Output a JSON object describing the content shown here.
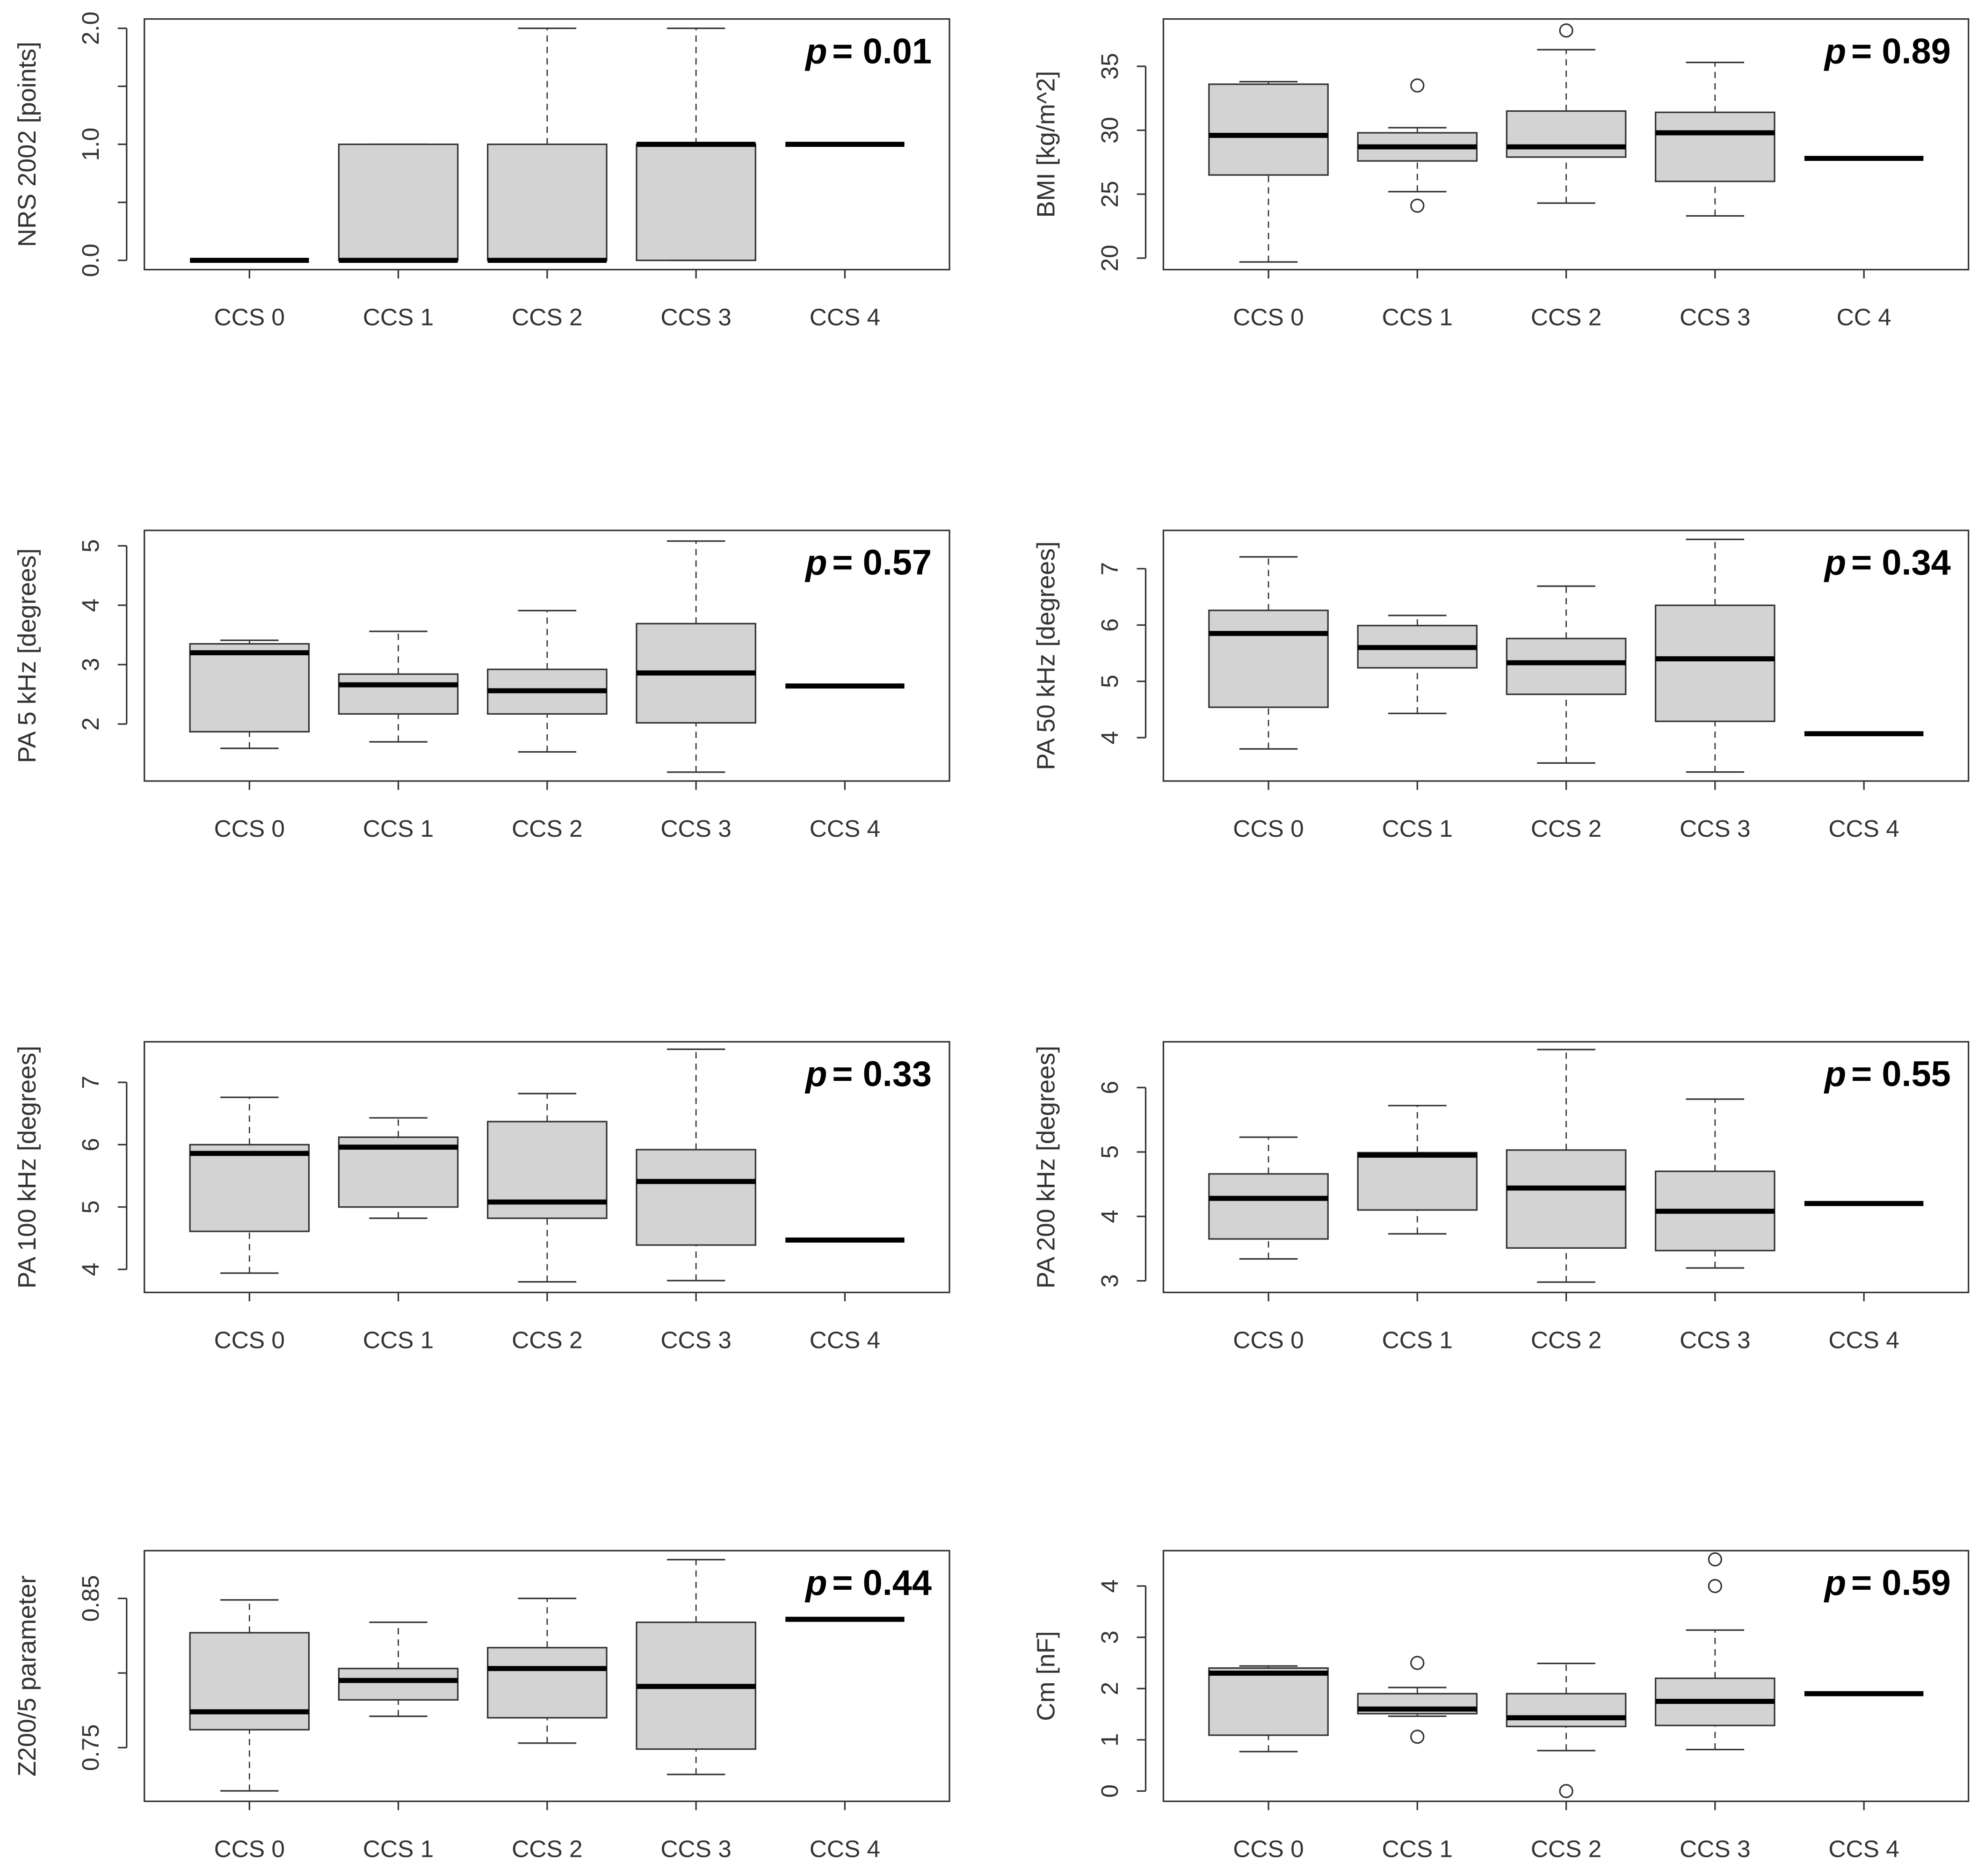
{
  "chart_data": [
    {
      "type": "box",
      "ylabel": "NRS 2002 [points]",
      "p_symbol": "p",
      "p_text": "= 0.01",
      "categories": [
        "CCS 0",
        "CCS 1",
        "CCS 2",
        "CCS 3",
        "CCS 4"
      ],
      "boxes": [
        {
          "low": 0,
          "q1": 0,
          "median": 0,
          "q3": 0,
          "high": 0,
          "outliers": []
        },
        {
          "low": 0,
          "q1": 0,
          "median": 0,
          "q3": 1,
          "high": 1,
          "outliers": []
        },
        {
          "low": 0,
          "q1": 0,
          "median": 0,
          "q3": 1,
          "high": 2,
          "outliers": []
        },
        {
          "low": 0,
          "q1": 0,
          "median": 1,
          "q3": 1,
          "high": 2,
          "outliers": []
        },
        {
          "low": 1,
          "q1": 1,
          "median": 1,
          "q3": 1,
          "high": 1,
          "outliers": []
        }
      ],
      "color": "#d3d3d3",
      "ylim": [
        -0.08,
        2.08
      ],
      "yticks": [
        {
          "value": 0,
          "label": "0.0"
        },
        {
          "value": 0.5,
          "label": null
        },
        {
          "value": 1,
          "label": "1.0"
        },
        {
          "value": 1.5,
          "label": null
        },
        {
          "value": 2,
          "label": "2.0"
        }
      ]
    },
    {
      "type": "box",
      "ylabel": "BMI [kg/m^2]",
      "p_symbol": "p",
      "p_text": "= 0.89",
      "categories": [
        "CCS 0",
        "CCS 1",
        "CCS 2",
        "CCS 3",
        "CC 4"
      ],
      "boxes": [
        {
          "low": 19.7,
          "q1": 26.5,
          "median": 29.6,
          "q3": 33.6,
          "high": 33.8,
          "outliers": []
        },
        {
          "low": 25.2,
          "q1": 27.6,
          "median": 28.7,
          "q3": 29.8,
          "high": 30.2,
          "outliers": [
            33.5,
            24.1
          ]
        },
        {
          "low": 24.3,
          "q1": 27.9,
          "median": 28.7,
          "q3": 31.5,
          "high": 36.3,
          "outliers": [
            37.8
          ]
        },
        {
          "low": 23.3,
          "q1": 26.0,
          "median": 29.8,
          "q3": 31.4,
          "high": 35.3,
          "outliers": []
        },
        {
          "low": 27.8,
          "q1": 27.8,
          "median": 27.8,
          "q3": 27.8,
          "high": 27.8,
          "outliers": []
        }
      ],
      "color": "#d3d3d3",
      "ylim": [
        19.1,
        38.7
      ],
      "yticks": [
        20,
        25,
        30,
        35
      ]
    },
    {
      "type": "box",
      "ylabel": "PA 5 kHz [degrees]",
      "p_symbol": "p",
      "p_text": "= 0.57",
      "categories": [
        "CCS 0",
        "CCS 1",
        "CCS 2",
        "CCS 3",
        "CCS 4"
      ],
      "boxes": [
        {
          "low": 1.59,
          "q1": 1.87,
          "median": 3.2,
          "q3": 3.35,
          "high": 3.41,
          "outliers": []
        },
        {
          "low": 1.7,
          "q1": 2.17,
          "median": 2.66,
          "q3": 2.84,
          "high": 3.56,
          "outliers": []
        },
        {
          "low": 1.53,
          "q1": 2.17,
          "median": 2.56,
          "q3": 2.92,
          "high": 3.91,
          "outliers": []
        },
        {
          "low": 1.19,
          "q1": 2.02,
          "median": 2.86,
          "q3": 3.69,
          "high": 5.08,
          "outliers": []
        },
        {
          "low": 2.64,
          "q1": 2.64,
          "median": 2.64,
          "q3": 2.64,
          "high": 2.64,
          "outliers": []
        }
      ],
      "color": "#d3d3d3",
      "ylim": [
        1.04,
        5.26
      ],
      "yticks": [
        2,
        3,
        4,
        5
      ]
    },
    {
      "type": "box",
      "ylabel": "PA 50 kHz [degrees]",
      "p_symbol": "p",
      "p_text": "= 0.34",
      "categories": [
        "CCS 0",
        "CCS 1",
        "CCS 2",
        "CCS 3",
        "CCS 4"
      ],
      "boxes": [
        {
          "low": 3.8,
          "q1": 4.54,
          "median": 5.85,
          "q3": 6.26,
          "high": 7.21,
          "outliers": []
        },
        {
          "low": 4.43,
          "q1": 5.24,
          "median": 5.6,
          "q3": 5.99,
          "high": 6.17,
          "outliers": []
        },
        {
          "low": 3.55,
          "q1": 4.77,
          "median": 5.33,
          "q3": 5.76,
          "high": 6.69,
          "outliers": []
        },
        {
          "low": 3.39,
          "q1": 4.29,
          "median": 5.4,
          "q3": 6.35,
          "high": 7.52,
          "outliers": []
        },
        {
          "low": 4.07,
          "q1": 4.07,
          "median": 4.07,
          "q3": 4.07,
          "high": 4.07,
          "outliers": []
        }
      ],
      "color": "#d3d3d3",
      "ylim": [
        3.23,
        7.68
      ],
      "yticks": [
        4,
        5,
        6,
        7
      ]
    },
    {
      "type": "box",
      "ylabel": "PA 100 kHz [degrees]",
      "p_symbol": "p",
      "p_text": "= 0.33",
      "categories": [
        "CCS 0",
        "CCS 1",
        "CCS 2",
        "CCS 3",
        "CCS 4"
      ],
      "boxes": [
        {
          "low": 3.94,
          "q1": 4.61,
          "median": 5.86,
          "q3": 6.0,
          "high": 6.76,
          "outliers": []
        },
        {
          "low": 4.82,
          "q1": 5.0,
          "median": 5.96,
          "q3": 6.12,
          "high": 6.43,
          "outliers": []
        },
        {
          "low": 3.8,
          "q1": 4.82,
          "median": 5.08,
          "q3": 6.37,
          "high": 6.82,
          "outliers": []
        },
        {
          "low": 3.82,
          "q1": 4.39,
          "median": 5.41,
          "q3": 5.92,
          "high": 7.53,
          "outliers": []
        },
        {
          "low": 4.47,
          "q1": 4.47,
          "median": 4.47,
          "q3": 4.47,
          "high": 4.47,
          "outliers": []
        }
      ],
      "color": "#d3d3d3",
      "ylim": [
        3.63,
        7.65
      ],
      "yticks": [
        4,
        5,
        6,
        7
      ]
    },
    {
      "type": "box",
      "ylabel": "PA 200 kHz [degrees]",
      "p_symbol": "p",
      "p_text": "= 0.55",
      "categories": [
        "CCS 0",
        "CCS 1",
        "CCS 2",
        "CCS 3",
        "CCS 4"
      ],
      "boxes": [
        {
          "low": 3.34,
          "q1": 3.65,
          "median": 4.28,
          "q3": 4.66,
          "high": 5.23,
          "outliers": []
        },
        {
          "low": 3.73,
          "q1": 4.1,
          "median": 4.95,
          "q3": 4.99,
          "high": 5.72,
          "outliers": []
        },
        {
          "low": 2.98,
          "q1": 3.51,
          "median": 4.44,
          "q3": 5.03,
          "high": 6.59,
          "outliers": []
        },
        {
          "low": 3.2,
          "q1": 3.47,
          "median": 4.08,
          "q3": 4.7,
          "high": 5.82,
          "outliers": []
        },
        {
          "low": 4.2,
          "q1": 4.2,
          "median": 4.2,
          "q3": 4.2,
          "high": 4.2,
          "outliers": []
        }
      ],
      "color": "#d3d3d3",
      "ylim": [
        2.82,
        6.71
      ],
      "yticks": [
        3,
        4,
        5,
        6
      ]
    },
    {
      "type": "box",
      "ylabel": "Z200/5 parameter",
      "p_symbol": "p",
      "p_text": "= 0.44",
      "categories": [
        "CCS 0",
        "CCS 1",
        "CCS 2",
        "CCS 3",
        "CCS 4"
      ],
      "boxes": [
        {
          "low": 0.721,
          "q1": 0.762,
          "median": 0.774,
          "q3": 0.827,
          "high": 0.849,
          "outliers": []
        },
        {
          "low": 0.771,
          "q1": 0.782,
          "median": 0.795,
          "q3": 0.803,
          "high": 0.834,
          "outliers": []
        },
        {
          "low": 0.753,
          "q1": 0.77,
          "median": 0.803,
          "q3": 0.817,
          "high": 0.85,
          "outliers": []
        },
        {
          "low": 0.732,
          "q1": 0.749,
          "median": 0.791,
          "q3": 0.834,
          "high": 0.876,
          "outliers": []
        },
        {
          "low": 0.836,
          "q1": 0.836,
          "median": 0.836,
          "q3": 0.836,
          "high": 0.836,
          "outliers": []
        }
      ],
      "color": "#d3d3d3",
      "ylim": [
        0.714,
        0.882
      ],
      "yticks": [
        0.75,
        {
          "value": 0.8,
          "label": null
        },
        0.85
      ]
    },
    {
      "type": "box",
      "ylabel": "Cm [nF]",
      "p_symbol": "p",
      "p_text": "= 0.59",
      "categories": [
        "CCS 0",
        "CCS 1",
        "CCS 2",
        "CCS 3",
        "CCS 4"
      ],
      "boxes": [
        {
          "low": 0.77,
          "q1": 1.09,
          "median": 2.3,
          "q3": 2.4,
          "high": 2.44,
          "outliers": []
        },
        {
          "low": 1.46,
          "q1": 1.51,
          "median": 1.6,
          "q3": 1.9,
          "high": 2.02,
          "outliers": [
            2.5,
            1.06
          ]
        },
        {
          "low": 0.79,
          "q1": 1.26,
          "median": 1.43,
          "q3": 1.9,
          "high": 2.49,
          "outliers": [
            0
          ]
        },
        {
          "low": 0.81,
          "q1": 1.28,
          "median": 1.75,
          "q3": 2.2,
          "high": 3.14,
          "outliers": [
            4.52,
            4.0
          ]
        },
        {
          "low": 1.9,
          "q1": 1.9,
          "median": 1.9,
          "q3": 1.9,
          "high": 1.9,
          "outliers": []
        }
      ],
      "color": "#d3d3d3",
      "ylim": [
        -0.2,
        4.69
      ],
      "yticks": [
        0,
        1,
        2,
        3,
        4
      ]
    }
  ]
}
